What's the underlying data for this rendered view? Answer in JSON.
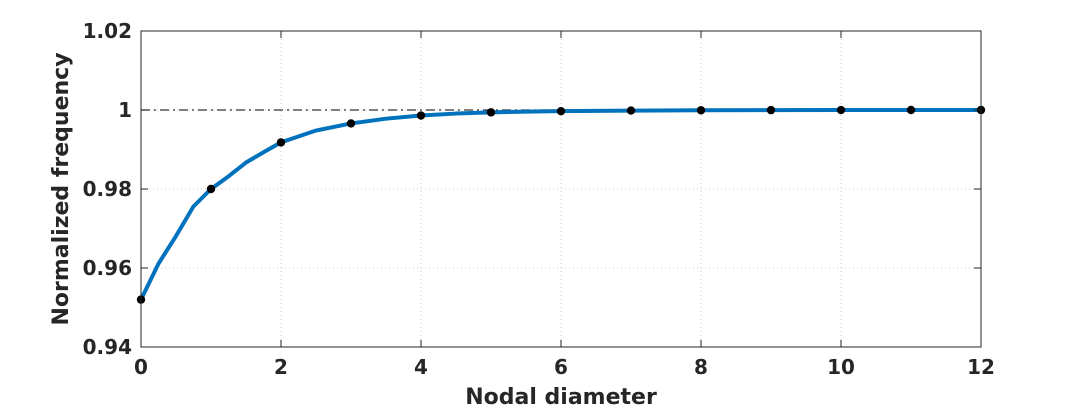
{
  "chart_data": {
    "type": "line",
    "title": "",
    "xlabel": "Nodal diameter",
    "ylabel": "Normalized frequency",
    "xlim": [
      0,
      12
    ],
    "ylim": [
      0.94,
      1.02
    ],
    "xticks": [
      0,
      2,
      4,
      6,
      8,
      10,
      12
    ],
    "xtick_labels": [
      "0",
      "2",
      "4",
      "6",
      "8",
      "10",
      "12"
    ],
    "yticks": [
      0.94,
      0.96,
      0.98,
      1.0,
      1.02
    ],
    "ytick_labels": [
      "0.94",
      "0.96",
      "0.98",
      "1",
      "1.02"
    ],
    "grid": true,
    "grid_style": "dotted",
    "reference_line": {
      "y": 1.0,
      "style": "dash-dot",
      "color": "#333333"
    },
    "series": [
      {
        "kind": "curve",
        "color": "#0072BD",
        "x": [
          0,
          0.25,
          0.5,
          0.75,
          1,
          1.25,
          1.5,
          1.75,
          2,
          2.5,
          3,
          3.5,
          4,
          4.5,
          5,
          5.5,
          6,
          7,
          8,
          9,
          10,
          11,
          12
        ],
        "y": [
          0.952,
          0.9611,
          0.9681,
          0.9756,
          0.98,
          0.9832,
          0.9867,
          0.9893,
          0.9918,
          0.9948,
          0.9966,
          0.9978,
          0.9986,
          0.9991,
          0.9994,
          0.9996,
          0.9997,
          0.99985,
          0.99993,
          0.99997,
          0.99999,
          1.0,
          1.0
        ]
      },
      {
        "kind": "markers",
        "color": "#000000",
        "x": [
          0,
          1,
          2,
          3,
          4,
          5,
          6,
          7,
          8,
          9,
          10,
          11,
          12
        ],
        "y": [
          0.952,
          0.98,
          0.9918,
          0.9966,
          0.9986,
          0.9994,
          0.9997,
          0.99985,
          0.99993,
          0.99997,
          0.99999,
          1.0,
          1.0
        ]
      }
    ]
  }
}
